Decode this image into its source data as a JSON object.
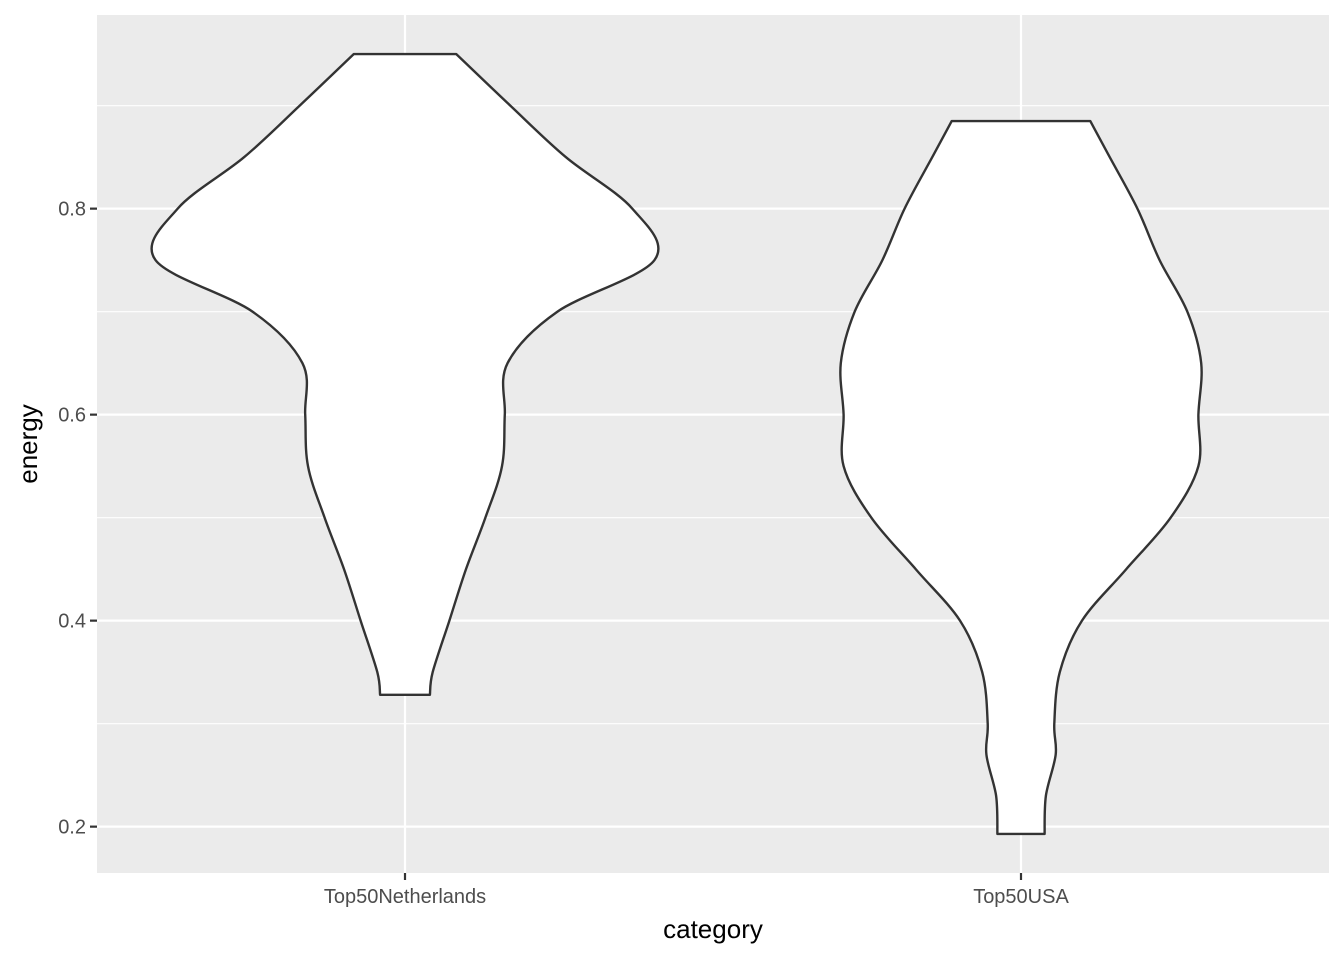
{
  "chart_data": {
    "type": "violin",
    "title": "",
    "xlabel": "category",
    "ylabel": "energy",
    "ylim": [
      0.155,
      0.988
    ],
    "yticks": [
      0.2,
      0.4,
      0.6,
      0.8
    ],
    "ytick_labels": [
      "0.2",
      "0.4",
      "0.6",
      "0.8"
    ],
    "categories": [
      "Top50Netherlands",
      "Top50USA"
    ],
    "grid": true,
    "legend": "none",
    "colors": {
      "panel": "#ebebeb",
      "grid": "#ffffff",
      "fill": "#ffffff",
      "outline": "#333333"
    },
    "series": [
      {
        "category": "Top50Netherlands",
        "density_profile": [
          [
            0.328,
            0.09
          ],
          [
            0.35,
            0.1
          ],
          [
            0.4,
            0.16
          ],
          [
            0.45,
            0.22
          ],
          [
            0.5,
            0.29
          ],
          [
            0.55,
            0.35
          ],
          [
            0.6,
            0.36
          ],
          [
            0.65,
            0.37
          ],
          [
            0.7,
            0.55
          ],
          [
            0.75,
            0.9
          ],
          [
            0.8,
            0.82
          ],
          [
            0.85,
            0.58
          ],
          [
            0.9,
            0.38
          ],
          [
            0.95,
            0.185
          ]
        ]
      },
      {
        "category": "Top50USA",
        "density_profile": [
          [
            0.193,
            0.085
          ],
          [
            0.23,
            0.09
          ],
          [
            0.27,
            0.125
          ],
          [
            0.3,
            0.12
          ],
          [
            0.35,
            0.14
          ],
          [
            0.4,
            0.22
          ],
          [
            0.45,
            0.38
          ],
          [
            0.5,
            0.54
          ],
          [
            0.55,
            0.64
          ],
          [
            0.6,
            0.64
          ],
          [
            0.65,
            0.65
          ],
          [
            0.7,
            0.6
          ],
          [
            0.75,
            0.5
          ],
          [
            0.8,
            0.42
          ],
          [
            0.85,
            0.32
          ],
          [
            0.885,
            0.25
          ]
        ]
      }
    ]
  }
}
